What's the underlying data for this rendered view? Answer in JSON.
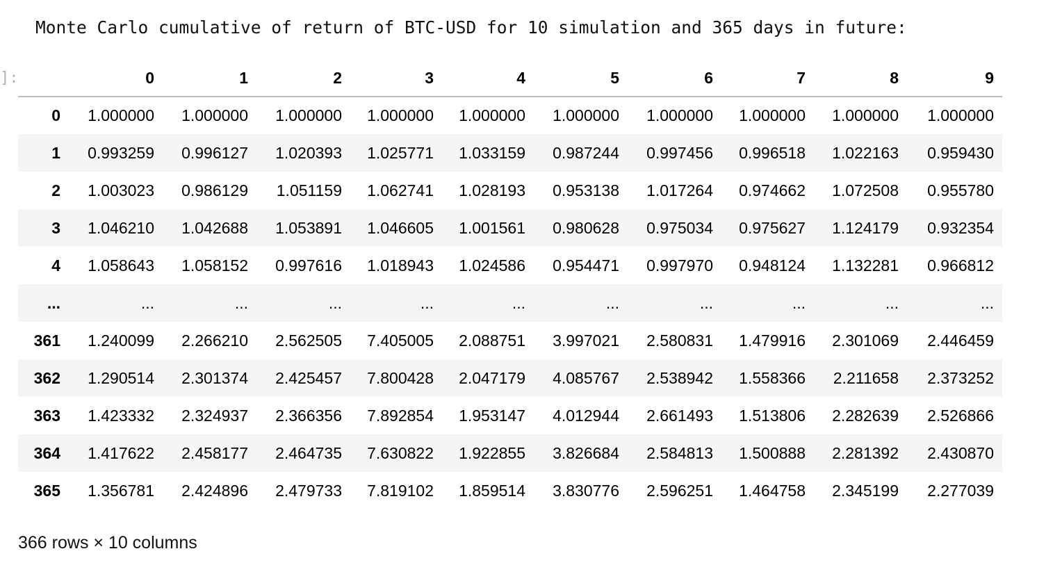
{
  "output": {
    "stdout_line": "Monte Carlo cumulative of return of BTC-USD for 10 simulation and 365 days in future:",
    "prompt_fragment": "]:"
  },
  "table": {
    "columns": [
      "",
      "0",
      "1",
      "2",
      "3",
      "4",
      "5",
      "6",
      "7",
      "8",
      "9"
    ],
    "rows": [
      {
        "index": "0",
        "values": [
          "1.000000",
          "1.000000",
          "1.000000",
          "1.000000",
          "1.000000",
          "1.000000",
          "1.000000",
          "1.000000",
          "1.000000",
          "1.000000"
        ]
      },
      {
        "index": "1",
        "values": [
          "0.993259",
          "0.996127",
          "1.020393",
          "1.025771",
          "1.033159",
          "0.987244",
          "0.997456",
          "0.996518",
          "1.022163",
          "0.959430"
        ]
      },
      {
        "index": "2",
        "values": [
          "1.003023",
          "0.986129",
          "1.051159",
          "1.062741",
          "1.028193",
          "0.953138",
          "1.017264",
          "0.974662",
          "1.072508",
          "0.955780"
        ]
      },
      {
        "index": "3",
        "values": [
          "1.046210",
          "1.042688",
          "1.053891",
          "1.046605",
          "1.001561",
          "0.980628",
          "0.975034",
          "0.975627",
          "1.124179",
          "0.932354"
        ]
      },
      {
        "index": "4",
        "values": [
          "1.058643",
          "1.058152",
          "0.997616",
          "1.018943",
          "1.024586",
          "0.954471",
          "0.997970",
          "0.948124",
          "1.132281",
          "0.966812"
        ]
      },
      {
        "index": "...",
        "values": [
          "...",
          "...",
          "...",
          "...",
          "...",
          "...",
          "...",
          "...",
          "...",
          "..."
        ]
      },
      {
        "index": "361",
        "values": [
          "1.240099",
          "2.266210",
          "2.562505",
          "7.405005",
          "2.088751",
          "3.997021",
          "2.580831",
          "1.479916",
          "2.301069",
          "2.446459"
        ]
      },
      {
        "index": "362",
        "values": [
          "1.290514",
          "2.301374",
          "2.425457",
          "7.800428",
          "2.047179",
          "4.085767",
          "2.538942",
          "1.558366",
          "2.211658",
          "2.373252"
        ]
      },
      {
        "index": "363",
        "values": [
          "1.423332",
          "2.324937",
          "2.366356",
          "7.892854",
          "1.953147",
          "4.012944",
          "2.661493",
          "1.513806",
          "2.282639",
          "2.526866"
        ]
      },
      {
        "index": "364",
        "values": [
          "1.417622",
          "2.458177",
          "2.464735",
          "7.630822",
          "1.922855",
          "3.826684",
          "2.584813",
          "1.500888",
          "2.281392",
          "2.430870"
        ]
      },
      {
        "index": "365",
        "values": [
          "1.356781",
          "2.424896",
          "2.479733",
          "7.819102",
          "1.859514",
          "3.830776",
          "2.596251",
          "1.464758",
          "2.345199",
          "2.277039"
        ]
      }
    ],
    "shape_label": "366 rows × 10 columns"
  },
  "colors": {
    "header_rule": "#bdbdbd",
    "stripe": "#f5f5f5",
    "prompt": "#b0b0b0"
  }
}
